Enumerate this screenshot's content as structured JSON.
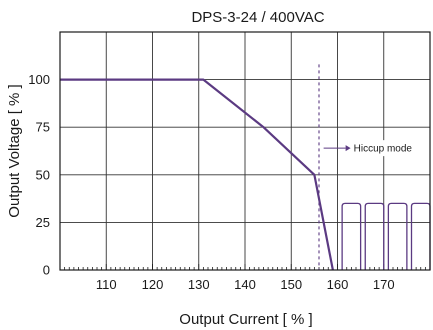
{
  "chart_data": {
    "type": "line",
    "title": "DPS-3-24 / 400VAC",
    "xlabel": "Output Current [ % ]",
    "ylabel": "Output Voltage  [ % ]",
    "xlim": [
      100,
      180
    ],
    "ylim": [
      0,
      125
    ],
    "x_ticks": [
      110,
      120,
      130,
      140,
      150,
      160,
      170
    ],
    "y_ticks": [
      0,
      25,
      50,
      75,
      100
    ],
    "x_grid": [
      100,
      110,
      120,
      130,
      140,
      150,
      160,
      170,
      180
    ],
    "y_grid": [
      0,
      25,
      50,
      75,
      100,
      125
    ],
    "grid": true,
    "series": [
      {
        "color": "#5b3a82",
        "points": [
          [
            100,
            100
          ],
          [
            131,
            100
          ],
          [
            144,
            75
          ],
          [
            155,
            50
          ],
          [
            159,
            0
          ]
        ]
      }
    ],
    "hiccup_pulses": {
      "color": "#5b3a82",
      "level": 35,
      "pulses": [
        [
          161,
          165
        ],
        [
          166,
          170
        ],
        [
          171,
          175
        ],
        [
          176,
          180
        ]
      ]
    },
    "marker_line": {
      "x": 156,
      "color": "#5b3a82",
      "style": "dashed"
    },
    "annotations": [
      {
        "text": "Hiccup mode",
        "x": 157,
        "y": 64,
        "arrow": true
      }
    ]
  }
}
